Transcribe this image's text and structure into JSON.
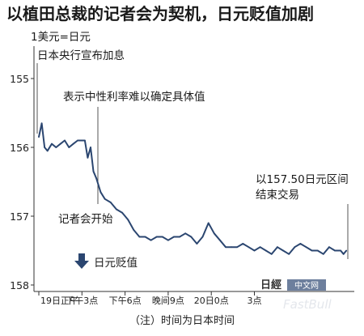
{
  "title": "以植田总裁的记者会为契机，日元贬值加剧",
  "note": "（注）时间为日本时间",
  "chart_data": {
    "type": "line",
    "title": "以植田总裁的记者会为契机，日元贬值加剧",
    "unit_label": "1美元=日元",
    "y_inverted": true,
    "ylim": [
      155,
      158
    ],
    "y_ticks": [
      155,
      156,
      157,
      158
    ],
    "x_ticks": [
      "19日正午",
      "下午3点",
      "下午6点",
      "晚间9点",
      "20日0点",
      "3点"
    ],
    "xlim_hours": [
      0,
      21.5
    ],
    "x": [
      0.0,
      0.2,
      0.4,
      0.6,
      0.9,
      1.2,
      1.5,
      1.8,
      2.1,
      2.4,
      2.7,
      3.0,
      3.2,
      3.4,
      3.6,
      3.8,
      4.0,
      4.3,
      4.6,
      5.0,
      5.4,
      5.8,
      6.2,
      6.6,
      7.0,
      7.4,
      7.8,
      8.2,
      8.6,
      9.0,
      9.4,
      9.8,
      10.2,
      10.6,
      11.0,
      11.4,
      11.8,
      12.2,
      12.6,
      13.0,
      13.4,
      13.8,
      14.2,
      14.6,
      15.0,
      15.4,
      15.8,
      16.2,
      16.6,
      17.0,
      17.4,
      17.8,
      18.2,
      18.6,
      19.0,
      19.4,
      19.8,
      20.2,
      20.6,
      21.0,
      21.2,
      21.4
    ],
    "values": [
      155.85,
      155.65,
      156.0,
      156.05,
      155.95,
      156.0,
      155.95,
      155.9,
      156.0,
      155.95,
      155.9,
      155.9,
      155.9,
      156.15,
      156.0,
      156.35,
      156.45,
      156.65,
      156.75,
      156.8,
      156.9,
      156.95,
      157.05,
      157.2,
      157.3,
      157.3,
      157.35,
      157.3,
      157.3,
      157.35,
      157.3,
      157.3,
      157.25,
      157.3,
      157.4,
      157.3,
      157.1,
      157.25,
      157.35,
      157.45,
      157.45,
      157.45,
      157.4,
      157.45,
      157.5,
      157.45,
      157.5,
      157.55,
      157.45,
      157.5,
      157.55,
      157.45,
      157.4,
      157.45,
      157.5,
      157.5,
      157.55,
      157.45,
      157.5,
      157.5,
      157.55,
      157.5
    ],
    "annotations": [
      {
        "text": "日本央行宣布加息",
        "x": 0.0
      },
      {
        "text": "表示中性利率难以确定具体值",
        "x": 3.1
      },
      {
        "text": "记者会开始",
        "x": 3.1
      },
      {
        "text": "以157.50日元区间",
        "x": 21.4
      },
      {
        "text": "结束交易",
        "x": 21.4
      }
    ],
    "arrow_label": "日元贬值",
    "line_color": "#2b4670",
    "grid": false
  },
  "watermark": {
    "logo_text": "日经中文网",
    "logo_badge": "中文网",
    "faint_text": "FastBull"
  }
}
